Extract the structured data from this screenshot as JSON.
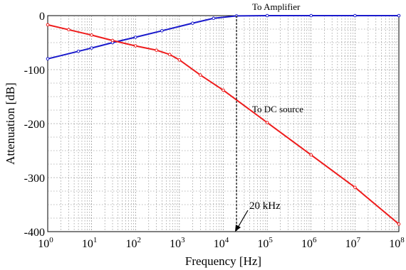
{
  "chart_data": {
    "type": "line",
    "xlabel": "Frequency [Hz]",
    "ylabel": "Attenuation [dB]",
    "x_scale": "log",
    "xlim": [
      1,
      100000000
    ],
    "ylim": [
      -400,
      0
    ],
    "grid": true,
    "x_ticks": [
      {
        "value": 1,
        "label": "10",
        "exp": "0"
      },
      {
        "value": 10,
        "label": "10",
        "exp": "1"
      },
      {
        "value": 100,
        "label": "10",
        "exp": "2"
      },
      {
        "value": 1000,
        "label": "10",
        "exp": "3"
      },
      {
        "value": 10000,
        "label": "10",
        "exp": "4"
      },
      {
        "value": 100000,
        "label": "10",
        "exp": "5"
      },
      {
        "value": 1000000,
        "label": "10",
        "exp": "6"
      },
      {
        "value": 10000000,
        "label": "10",
        "exp": "7"
      },
      {
        "value": 100000000,
        "label": "10",
        "exp": "8"
      }
    ],
    "y_ticks": [
      {
        "value": 0,
        "label": "0"
      },
      {
        "value": -100,
        "label": "-100"
      },
      {
        "value": -200,
        "label": "-200"
      },
      {
        "value": -300,
        "label": "-300"
      },
      {
        "value": -400,
        "label": "-400"
      }
    ],
    "series": [
      {
        "name": "To Amplifier",
        "color": "#1a1acc",
        "x": [
          1,
          5,
          10,
          30,
          100,
          400,
          2000,
          6000,
          20000,
          100000,
          1000000,
          10000000,
          100000000
        ],
        "y": [
          -80,
          -66,
          -60,
          -50,
          -40,
          -28,
          -14,
          -5,
          -0.5,
          0,
          0,
          0,
          0
        ]
      },
      {
        "name": "To DC source",
        "color": "#ee1c1c",
        "x": [
          1,
          3,
          10,
          30,
          100,
          300,
          600,
          1000,
          3000,
          10000,
          100000,
          1000000,
          10000000,
          100000000
        ],
        "y": [
          -17,
          -26,
          -36,
          -46,
          -56,
          -64,
          -72,
          -82,
          -110,
          -138,
          -198,
          -258,
          -318,
          -386
        ]
      }
    ],
    "annotations": [
      {
        "text": "20 kHz",
        "x": 20000,
        "y": -355
      },
      {
        "text": "To Amplifier",
        "x": 300000,
        "y": -10
      },
      {
        "text": "To DC source",
        "x": 150000,
        "y": -150
      }
    ],
    "marker_line": {
      "x": 20000
    }
  }
}
